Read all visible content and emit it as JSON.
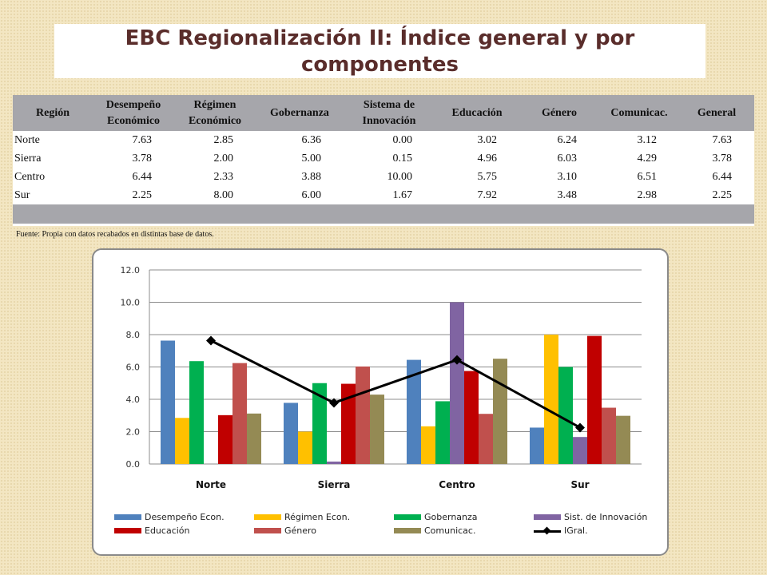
{
  "title": "EBC Regionalización II: Índice general y por componentes",
  "table": {
    "headers": [
      [
        "Región"
      ],
      [
        "Desempeño",
        "Económico"
      ],
      [
        "Régimen",
        "Económico"
      ],
      [
        "Gobernanza"
      ],
      [
        "Sistema de",
        "Innovación"
      ],
      [
        "Educación"
      ],
      [
        "Género"
      ],
      [
        "Comunicac."
      ],
      [
        "General"
      ]
    ],
    "rows": [
      [
        "Norte",
        "7.63",
        "2.85",
        "6.36",
        "0.00",
        "3.02",
        "6.24",
        "3.12",
        "7.63"
      ],
      [
        "Sierra",
        "3.78",
        "2.00",
        "5.00",
        "0.15",
        "4.96",
        "6.03",
        "4.29",
        "3.78"
      ],
      [
        "Centro",
        "6.44",
        "2.33",
        "3.88",
        "10.00",
        "5.75",
        "3.10",
        "6.51",
        "6.44"
      ],
      [
        "Sur",
        "2.25",
        "8.00",
        "6.00",
        "1.67",
        "7.92",
        "3.48",
        "2.98",
        "2.25"
      ]
    ]
  },
  "source": "Fuente: Propia con datos recabados en distintas base de datos.",
  "chart_data": {
    "type": "bar",
    "categories": [
      "Norte",
      "Sierra",
      "Centro",
      "Sur"
    ],
    "ylim": [
      0,
      12
    ],
    "yticks": [
      "0.0",
      "2.0",
      "4.0",
      "6.0",
      "8.0",
      "10.0",
      "12.0"
    ],
    "grid": true,
    "legend_position": "bottom",
    "series": [
      {
        "name": "Desempeño Econ.",
        "color": "#4f81bd",
        "values": [
          7.63,
          3.78,
          6.44,
          2.25
        ]
      },
      {
        "name": "Régimen Econ.",
        "color": "#ffc000",
        "values": [
          2.85,
          2.0,
          2.33,
          8.0
        ]
      },
      {
        "name": "Gobernanza",
        "color": "#00b050",
        "values": [
          6.36,
          5.0,
          3.88,
          6.0
        ]
      },
      {
        "name": "Sist. de Innovación",
        "color": "#8064a2",
        "values": [
          0.0,
          0.15,
          10.0,
          1.67
        ]
      },
      {
        "name": "Educación",
        "color": "#c00000",
        "values": [
          3.02,
          4.96,
          5.75,
          7.92
        ]
      },
      {
        "name": "Género",
        "color": "#c0504d",
        "values": [
          6.24,
          6.03,
          3.1,
          3.48
        ]
      },
      {
        "name": "Comunicac.",
        "color": "#948a54",
        "values": [
          3.12,
          4.29,
          6.51,
          2.98
        ]
      }
    ],
    "line_series": {
      "name": "IGral.",
      "color": "#000000",
      "values": [
        7.63,
        3.78,
        6.44,
        2.25
      ]
    }
  }
}
